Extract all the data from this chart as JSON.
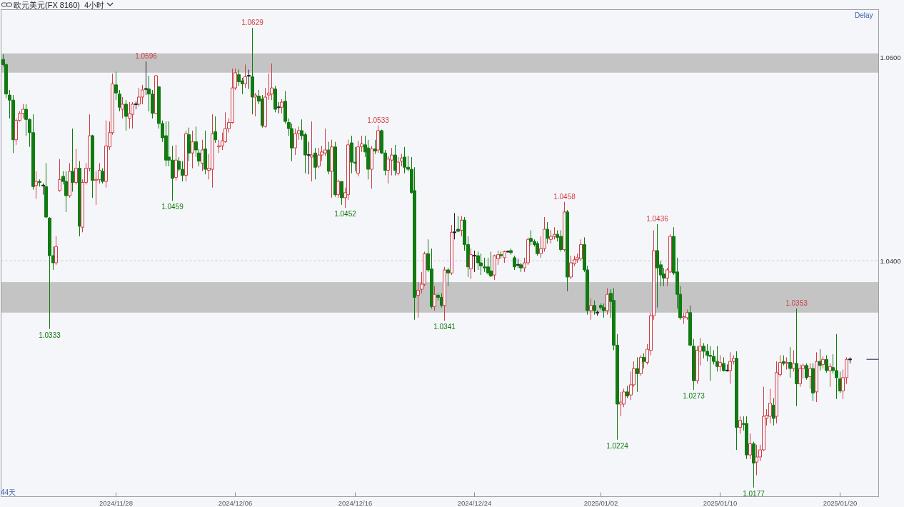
{
  "chart_data": {
    "type": "candlestick",
    "title": "欧元美元(FX 8160)  4小时",
    "categories": [
      null,
      null,
      null,
      null,
      null,
      null,
      null,
      null,
      null,
      null,
      null,
      null,
      null,
      null,
      null,
      null,
      null,
      null,
      null,
      null,
      null,
      null,
      null,
      null,
      null,
      null,
      null,
      null,
      null,
      null,
      null,
      null,
      null,
      null,
      "2024/11/28",
      null,
      null,
      null,
      null,
      null,
      null,
      null,
      null,
      null,
      null,
      null,
      null,
      null,
      null,
      null,
      null,
      null,
      null,
      null,
      null,
      null,
      null,
      null,
      null,
      null,
      null,
      null,
      null,
      null,
      null,
      null,
      null,
      null,
      null,
      null,
      "2024/12/06",
      null,
      null,
      null,
      null,
      null,
      null,
      null,
      null,
      null,
      null,
      null,
      null,
      null,
      null,
      null,
      null,
      null,
      null,
      null,
      null,
      null,
      null,
      null,
      null,
      null,
      null,
      null,
      null,
      null,
      null,
      null,
      null,
      null,
      null,
      null,
      "2024/12/16",
      null,
      null,
      null,
      null,
      null,
      null,
      null,
      null,
      null,
      null,
      null,
      null,
      null,
      null,
      null,
      null,
      null,
      null,
      null,
      null,
      null,
      null,
      null,
      null,
      null,
      null,
      null,
      null,
      null,
      null,
      null,
      null,
      null,
      null,
      null,
      "2024/12/24",
      null,
      null,
      null,
      null,
      null,
      null,
      null,
      null,
      null,
      null,
      null,
      null,
      null,
      null,
      null,
      null,
      null,
      null,
      null,
      null,
      null,
      null,
      null,
      null,
      null,
      null,
      null,
      null,
      null,
      null,
      null,
      null,
      null,
      null,
      null,
      null,
      null,
      "2025/01/02",
      null,
      null,
      null,
      null,
      null,
      null,
      null,
      null,
      null,
      null,
      null,
      null,
      null,
      null,
      null,
      null,
      null,
      null,
      null,
      null,
      null,
      null,
      null,
      null,
      null,
      null,
      null,
      null,
      null,
      null,
      null,
      null,
      null,
      null,
      null,
      "2025/01/10",
      null,
      null,
      null,
      null,
      null,
      null,
      null,
      null,
      null,
      null,
      null,
      null,
      null,
      null,
      null,
      null,
      null,
      null,
      null,
      null,
      null,
      null,
      null,
      null,
      null,
      null,
      null,
      null,
      null,
      null,
      null,
      null,
      null,
      null,
      null,
      "2025/01/20",
      null,
      null,
      null
    ],
    "ohlc": [
      [
        1.0598,
        1.0603,
        1.0591,
        1.0593
      ],
      [
        1.0593,
        1.0594,
        1.056,
        1.0564
      ],
      [
        1.0563,
        1.0568,
        1.054,
        1.0558
      ],
      [
        1.0558,
        1.0563,
        1.0506,
        1.0519
      ],
      [
        1.0519,
        1.054,
        1.0514,
        1.0538
      ],
      [
        1.0538,
        1.0547,
        1.0537,
        1.0545
      ],
      [
        1.0545,
        1.0554,
        1.054,
        1.0549
      ],
      [
        1.0549,
        1.0554,
        1.0523,
        1.0539
      ],
      [
        1.0539,
        1.054,
        1.0512,
        1.0526
      ],
      [
        1.0526,
        1.0544,
        1.047,
        1.0473
      ],
      [
        1.0474,
        1.0488,
        1.0461,
        1.0478
      ],
      [
        1.0478,
        1.048,
        1.0473,
        1.0477
      ],
      [
        1.0474,
        1.0476,
        1.0465,
        1.0474
      ],
      [
        1.0473,
        1.0496,
        1.0442,
        1.0443
      ],
      [
        1.0442,
        1.0443,
        1.0333,
        1.0405
      ],
      [
        1.0405,
        1.0414,
        1.0391,
        1.0398
      ],
      [
        1.0398,
        1.0424,
        1.0396,
        1.0414
      ],
      [
        1.0469,
        1.05,
        1.0468,
        1.048
      ],
      [
        1.0483,
        1.0488,
        1.0475,
        1.0478
      ],
      [
        1.0478,
        1.0488,
        1.0448,
        1.0464
      ],
      [
        1.0464,
        1.0496,
        1.0462,
        1.0488
      ],
      [
        1.0488,
        1.053,
        1.0468,
        1.0477
      ],
      [
        1.0477,
        1.051,
        1.0475,
        1.0491
      ],
      [
        1.0491,
        1.0498,
        1.0424,
        1.0434
      ],
      [
        1.0433,
        1.048,
        1.0428,
        1.0477
      ],
      [
        1.0477,
        1.0496,
        1.0475,
        1.0491
      ],
      [
        1.0491,
        1.0544,
        1.0488,
        1.0523
      ],
      [
        1.0523,
        1.0524,
        1.0462,
        1.0479
      ],
      [
        1.0479,
        1.0488,
        1.0455,
        1.048
      ],
      [
        1.048,
        1.0496,
        1.0476,
        1.0489
      ],
      [
        1.0488,
        1.0491,
        1.0476,
        1.0478
      ],
      [
        1.0478,
        1.0538,
        1.0472,
        1.0513
      ],
      [
        1.0512,
        1.0537,
        1.0509,
        1.0526
      ],
      [
        1.0526,
        1.0584,
        1.0524,
        1.0574
      ],
      [
        1.0573,
        1.0586,
        1.0558,
        1.0565
      ],
      [
        1.0564,
        1.0568,
        1.0547,
        1.0551
      ],
      [
        1.0549,
        1.0561,
        1.054,
        1.0554
      ],
      [
        1.0554,
        1.0558,
        1.0528,
        1.0542
      ],
      [
        1.054,
        1.0556,
        1.053,
        1.0545
      ],
      [
        1.0544,
        1.0556,
        1.053,
        1.0554
      ],
      [
        1.0554,
        1.0557,
        1.0549,
        1.0554
      ],
      [
        1.0554,
        1.057,
        1.0552,
        1.0561
      ],
      [
        1.0561,
        1.0573,
        1.0554,
        1.0568
      ],
      [
        1.0569,
        1.0596,
        1.0563,
        1.0569
      ],
      [
        1.0569,
        1.0582,
        1.0547,
        1.0564
      ],
      [
        1.0564,
        1.0568,
        1.054,
        1.0545
      ],
      [
        1.0545,
        1.0583,
        1.0544,
        1.0582
      ],
      [
        1.0571,
        1.0572,
        1.053,
        1.0535
      ],
      [
        1.0535,
        1.0538,
        1.0517,
        1.0521
      ],
      [
        1.0523,
        1.0537,
        1.0493,
        1.0499
      ],
      [
        1.0502,
        1.0537,
        1.0493,
        1.0499
      ],
      [
        1.0499,
        1.0513,
        1.0459,
        1.0481
      ],
      [
        1.0482,
        1.0514,
        1.0479,
        1.0499
      ],
      [
        1.0498,
        1.0502,
        1.0488,
        1.049
      ],
      [
        1.049,
        1.0498,
        1.0478,
        1.0484
      ],
      [
        1.0484,
        1.0528,
        1.0478,
        1.0525
      ],
      [
        1.0524,
        1.0531,
        1.0498,
        1.0506
      ],
      [
        1.0506,
        1.0528,
        1.0491,
        1.0517
      ],
      [
        1.0517,
        1.0532,
        1.0502,
        1.0509
      ],
      [
        1.0506,
        1.051,
        1.0493,
        1.0498
      ],
      [
        1.0496,
        1.0519,
        1.0488,
        1.0509
      ],
      [
        1.051,
        1.0528,
        1.0485,
        1.049
      ],
      [
        1.0489,
        1.0505,
        1.048,
        1.0491
      ],
      [
        1.049,
        1.0544,
        1.0472,
        1.0525
      ],
      [
        1.0527,
        1.0542,
        1.0516,
        1.0519
      ],
      [
        1.0512,
        1.0519,
        1.0506,
        1.0513
      ],
      [
        1.0513,
        1.0526,
        1.0509,
        1.0518
      ],
      [
        1.0517,
        1.0546,
        1.0516,
        1.053
      ],
      [
        1.053,
        1.054,
        1.0526,
        1.0536
      ],
      [
        1.0536,
        1.0589,
        1.0535,
        1.057
      ],
      [
        1.057,
        1.0589,
        1.0568,
        1.0585
      ],
      [
        1.0583,
        1.0588,
        1.0572,
        1.0576
      ],
      [
        1.0577,
        1.058,
        1.0564,
        1.0574
      ],
      [
        1.0574,
        1.0593,
        1.057,
        1.0581
      ],
      [
        1.0582,
        1.0588,
        1.0569,
        1.0582
      ],
      [
        1.0581,
        1.0629,
        1.0544,
        1.0561
      ],
      [
        1.0561,
        1.0565,
        1.0542,
        1.0563
      ],
      [
        1.0562,
        1.0568,
        1.0554,
        1.0557
      ],
      [
        1.0559,
        1.0563,
        1.0531,
        1.0533
      ],
      [
        1.0532,
        1.057,
        1.0531,
        1.0561
      ],
      [
        1.0563,
        1.0584,
        1.0558,
        1.0565
      ],
      [
        1.0564,
        1.0594,
        1.0558,
        1.057
      ],
      [
        1.0569,
        1.0572,
        1.0546,
        1.0549
      ],
      [
        1.0551,
        1.0556,
        1.0545,
        1.0551
      ],
      [
        1.0551,
        1.0559,
        1.0545,
        1.0556
      ],
      [
        1.0557,
        1.0567,
        1.0535,
        1.0537
      ],
      [
        1.0536,
        1.054,
        1.0523,
        1.053
      ],
      [
        1.053,
        1.0535,
        1.0498,
        1.0511
      ],
      [
        1.0511,
        1.053,
        1.0504,
        1.0525
      ],
      [
        1.0525,
        1.0532,
        1.0519,
        1.0528
      ],
      [
        1.0528,
        1.0539,
        1.0519,
        1.0523
      ],
      [
        1.0524,
        1.0526,
        1.0486,
        1.0504
      ],
      [
        1.0504,
        1.0517,
        1.0485,
        1.0504
      ],
      [
        1.0502,
        1.0537,
        1.0478,
        1.0504
      ],
      [
        1.0506,
        1.0511,
        1.048,
        1.0492
      ],
      [
        1.0493,
        1.0511,
        1.0491,
        1.0504
      ],
      [
        1.0504,
        1.0513,
        1.0498,
        1.0507
      ],
      [
        1.0506,
        1.053,
        1.0503,
        1.0509
      ],
      [
        1.0509,
        1.0517,
        1.0485,
        1.0488
      ],
      [
        1.0488,
        1.0519,
        1.0462,
        1.0512
      ],
      [
        1.0512,
        1.0517,
        1.0463,
        1.0465
      ],
      [
        1.0465,
        1.048,
        1.0462,
        1.0478
      ],
      [
        1.0478,
        1.0478,
        1.0455,
        1.0462
      ],
      [
        1.0462,
        1.0472,
        1.0452,
        1.0467
      ],
      [
        1.0465,
        1.0519,
        1.046,
        1.0514
      ],
      [
        1.0516,
        1.0523,
        1.0486,
        1.0497
      ],
      [
        1.0497,
        1.0512,
        1.0488,
        1.0496
      ],
      [
        1.0486,
        1.0518,
        1.0483,
        1.0512
      ],
      [
        1.0512,
        1.0523,
        1.0507,
        1.0515
      ],
      [
        1.0514,
        1.0523,
        1.0502,
        1.0507
      ],
      [
        1.0511,
        1.0519,
        1.048,
        1.049
      ],
      [
        1.049,
        1.0513,
        1.0471,
        1.051
      ],
      [
        1.051,
        1.0519,
        1.0505,
        1.0508
      ],
      [
        1.0509,
        1.0533,
        1.0506,
        1.0528
      ],
      [
        1.0528,
        1.0529,
        1.0505,
        1.0506
      ],
      [
        1.0506,
        1.0509,
        1.0484,
        1.0489
      ],
      [
        1.0489,
        1.0503,
        1.0476,
        1.05
      ],
      [
        1.0499,
        1.0511,
        1.0484,
        1.0504
      ],
      [
        1.0504,
        1.0514,
        1.0484,
        1.0489
      ],
      [
        1.0486,
        1.0502,
        1.0484,
        1.0497
      ],
      [
        1.0498,
        1.0505,
        1.0493,
        1.0501
      ],
      [
        1.0502,
        1.0512,
        1.0486,
        1.0492
      ],
      [
        1.0492,
        1.0503,
        1.0488,
        1.049
      ],
      [
        1.049,
        1.0502,
        1.0466,
        1.0467
      ],
      [
        1.0469,
        1.0492,
        1.0342,
        1.0364
      ],
      [
        1.0366,
        1.0379,
        1.0344,
        1.0371
      ],
      [
        1.0372,
        1.0389,
        1.0368,
        1.0377
      ],
      [
        1.0377,
        1.0409,
        1.0375,
        1.0407
      ],
      [
        1.0407,
        1.0421,
        1.0389,
        1.0391
      ],
      [
        1.0392,
        1.0412,
        1.0353,
        1.0355
      ],
      [
        1.0355,
        1.0375,
        1.0351,
        1.0367
      ],
      [
        1.0366,
        1.0368,
        1.0361,
        1.0364
      ],
      [
        1.0364,
        1.0368,
        1.0354,
        1.0356
      ],
      [
        1.0356,
        1.0394,
        1.0341,
        1.0391
      ],
      [
        1.0391,
        1.0393,
        1.0375,
        1.0388
      ],
      [
        1.0388,
        1.0435,
        1.0386,
        1.0428
      ],
      [
        1.0428,
        1.0447,
        1.0421,
        1.0428
      ],
      [
        1.0431,
        1.0444,
        1.0428,
        1.0429
      ],
      [
        1.043,
        1.0444,
        1.0424,
        1.044
      ],
      [
        1.044,
        1.0443,
        1.041,
        1.0416
      ],
      [
        1.0416,
        1.0424,
        1.0384,
        1.0394
      ],
      [
        1.0392,
        1.0412,
        1.0382,
        1.0406
      ],
      [
        1.0405,
        1.041,
        1.0389,
        1.0405
      ],
      [
        1.0405,
        1.0409,
        1.0391,
        1.0398
      ],
      [
        1.0398,
        1.0407,
        1.0386,
        1.0395
      ],
      [
        1.0394,
        1.0403,
        1.0389,
        1.0393
      ],
      [
        1.0394,
        1.0403,
        1.0386,
        1.0388
      ],
      [
        1.039,
        1.0409,
        1.0384,
        1.0385
      ],
      [
        1.0386,
        1.0406,
        1.0381,
        1.0405
      ],
      [
        1.0402,
        1.041,
        1.0396,
        1.0406
      ],
      [
        1.0406,
        1.0409,
        1.0402,
        1.0405
      ],
      [
        1.0403,
        1.041,
        1.0398,
        1.0409
      ],
      [
        1.0409,
        1.041,
        1.0408,
        1.0409
      ],
      [
        1.041,
        1.0412,
        1.0406,
        1.0408
      ],
      [
        1.0403,
        1.0405,
        1.0391,
        1.0394
      ],
      [
        1.0396,
        1.0402,
        1.0393,
        1.0396
      ],
      [
        1.0396,
        1.0398,
        1.0389,
        1.0393
      ],
      [
        1.0393,
        1.0403,
        1.0389,
        1.0398
      ],
      [
        1.0398,
        1.0423,
        1.0396,
        1.0421
      ],
      [
        1.0422,
        1.043,
        1.0415,
        1.0419
      ],
      [
        1.0419,
        1.0421,
        1.0414,
        1.0416
      ],
      [
        1.0417,
        1.0419,
        1.0405,
        1.0407
      ],
      [
        1.0407,
        1.0424,
        1.0403,
        1.0412
      ],
      [
        1.0412,
        1.0443,
        1.0409,
        1.0431
      ],
      [
        1.0431,
        1.0438,
        1.0417,
        1.0422
      ],
      [
        1.0421,
        1.043,
        1.0417,
        1.0424
      ],
      [
        1.0424,
        1.0433,
        1.0421,
        1.0426
      ],
      [
        1.0426,
        1.043,
        1.0419,
        1.0423
      ],
      [
        1.0424,
        1.043,
        1.0409,
        1.0411
      ],
      [
        1.0411,
        1.0458,
        1.0409,
        1.0448
      ],
      [
        1.0448,
        1.045,
        1.037,
        1.0384
      ],
      [
        1.0384,
        1.0405,
        1.0382,
        1.0398
      ],
      [
        1.0397,
        1.0405,
        1.0395,
        1.0401
      ],
      [
        1.0401,
        1.0407,
        1.0398,
        1.0403
      ],
      [
        1.0402,
        1.0421,
        1.04,
        1.0416
      ],
      [
        1.0416,
        1.0423,
        1.0389,
        1.0391
      ],
      [
        1.0391,
        1.0395,
        1.0347,
        1.0351
      ],
      [
        1.0351,
        1.0363,
        1.0342,
        1.0356
      ],
      [
        1.0356,
        1.0361,
        1.0347,
        1.0351
      ],
      [
        1.0349,
        1.0351,
        1.0346,
        1.0349
      ],
      [
        1.0356,
        1.0358,
        1.0352,
        1.0354
      ],
      [
        1.0354,
        1.0358,
        1.0344,
        1.0351
      ],
      [
        1.0351,
        1.0373,
        1.0347,
        1.0367
      ],
      [
        1.0368,
        1.0372,
        1.0344,
        1.036
      ],
      [
        1.0361,
        1.0373,
        1.0312,
        1.0317
      ],
      [
        1.0317,
        1.0328,
        1.0224,
        1.0259
      ],
      [
        1.0259,
        1.0271,
        1.0247,
        1.0261
      ],
      [
        1.0259,
        1.0274,
        1.0256,
        1.0271
      ],
      [
        1.0271,
        1.0277,
        1.0265,
        1.0267
      ],
      [
        1.0268,
        1.0291,
        1.0263,
        1.0278
      ],
      [
        1.0278,
        1.0301,
        1.0276,
        1.0294
      ],
      [
        1.0294,
        1.0305,
        1.0271,
        1.0289
      ],
      [
        1.0289,
        1.0307,
        1.0287,
        1.0305
      ],
      [
        1.0305,
        1.0309,
        1.0294,
        1.0301
      ],
      [
        1.03,
        1.0318,
        1.0298,
        1.0313
      ],
      [
        1.0312,
        1.0349,
        1.0307,
        1.0346
      ],
      [
        1.0346,
        1.043,
        1.0342,
        1.041
      ],
      [
        1.041,
        1.0436,
        1.0354,
        1.0393
      ],
      [
        1.0396,
        1.04,
        1.0375,
        1.0386
      ],
      [
        1.0387,
        1.0393,
        1.0375,
        1.0383
      ],
      [
        1.0383,
        1.0393,
        1.0375,
        1.0391
      ],
      [
        1.0389,
        1.0426,
        1.0388,
        1.0424
      ],
      [
        1.0424,
        1.0433,
        1.0386,
        1.0388
      ],
      [
        1.0389,
        1.0403,
        1.0353,
        1.0367
      ],
      [
        1.0367,
        1.0375,
        1.0342,
        1.0344
      ],
      [
        1.0344,
        1.0349,
        1.0338,
        1.0345
      ],
      [
        1.0344,
        1.0352,
        1.0342,
        1.0349
      ],
      [
        1.0349,
        1.0356,
        1.0316,
        1.0317
      ],
      [
        1.0316,
        1.0323,
        1.0273,
        1.0282
      ],
      [
        1.0282,
        1.0316,
        1.0279,
        1.0312
      ],
      [
        1.0311,
        1.0324,
        1.0297,
        1.0316
      ],
      [
        1.0316,
        1.0319,
        1.0304,
        1.0311
      ],
      [
        1.0311,
        1.0318,
        1.0301,
        1.0307
      ],
      [
        1.0307,
        1.0316,
        1.0282,
        1.0306
      ],
      [
        1.0306,
        1.0312,
        1.0298,
        1.0301
      ],
      [
        1.0301,
        1.0316,
        1.0291,
        1.0296
      ],
      [
        1.0296,
        1.0307,
        1.0291,
        1.03
      ],
      [
        1.0299,
        1.0305,
        1.0291,
        1.0292
      ],
      [
        1.0292,
        1.0298,
        1.0291,
        1.0292
      ],
      [
        1.0292,
        1.031,
        1.0279,
        1.0301
      ],
      [
        1.0301,
        1.0307,
        1.0298,
        1.0304
      ],
      [
        1.0304,
        1.0311,
        1.0214,
        1.0236
      ],
      [
        1.0236,
        1.0247,
        1.023,
        1.0243
      ],
      [
        1.024,
        1.0247,
        1.0233,
        1.0239
      ],
      [
        1.024,
        1.0247,
        1.0205,
        1.0209
      ],
      [
        1.0209,
        1.023,
        1.0205,
        1.022
      ],
      [
        1.022,
        1.0222,
        1.0177,
        1.0201
      ],
      [
        1.0202,
        1.0219,
        1.0189,
        1.0207
      ],
      [
        1.0207,
        1.0219,
        1.0203,
        1.0214
      ],
      [
        1.0214,
        1.0276,
        1.0213,
        1.0247
      ],
      [
        1.0245,
        1.0254,
        1.0238,
        1.0248
      ],
      [
        1.0247,
        1.0274,
        1.024,
        1.026
      ],
      [
        1.0258,
        1.0265,
        1.0238,
        1.0245
      ],
      [
        1.0247,
        1.0301,
        1.024,
        1.029
      ],
      [
        1.0288,
        1.0307,
        1.0286,
        1.03
      ],
      [
        1.0301,
        1.0307,
        1.0297,
        1.0299
      ],
      [
        1.0299,
        1.0305,
        1.0293,
        1.03
      ],
      [
        1.03,
        1.0315,
        1.0285,
        1.0294
      ],
      [
        1.0294,
        1.0312,
        1.0291,
        1.0299
      ],
      [
        1.0299,
        1.0353,
        1.0257,
        1.0279
      ],
      [
        1.0279,
        1.0298,
        1.0276,
        1.0294
      ],
      [
        1.0294,
        1.0299,
        1.0284,
        1.0297
      ],
      [
        1.0297,
        1.0299,
        1.0283,
        1.0285
      ],
      [
        1.0286,
        1.0299,
        1.0274,
        1.0294
      ],
      [
        1.0294,
        1.0299,
        1.0262,
        1.027
      ],
      [
        1.0271,
        1.031,
        1.0261,
        1.0301
      ],
      [
        1.0301,
        1.0313,
        1.0292,
        1.0297
      ],
      [
        1.0298,
        1.0306,
        1.0294,
        1.0303
      ],
      [
        1.0303,
        1.0307,
        1.029,
        1.0292
      ],
      [
        1.0292,
        1.0299,
        1.0276,
        1.0296
      ],
      [
        1.0295,
        1.0308,
        1.0289,
        1.0292
      ],
      [
        1.0292,
        1.0328,
        1.0264,
        1.0285
      ],
      [
        1.0284,
        1.0291,
        1.027,
        1.0272
      ],
      [
        1.0272,
        1.0293,
        1.0264,
        1.0285
      ],
      [
        1.0285,
        1.0305,
        1.0279,
        1.0303
      ],
      [
        1.0303,
        1.0305,
        1.0299,
        1.0303
      ]
    ],
    "colors": [
      "#117a11",
      "#117a11",
      "#117a11",
      "#117a11",
      "#d23c46",
      "#d23c46",
      "#d23c46",
      "#117a11",
      "#117a11",
      "#117a11",
      "#d23c46",
      "#117a11",
      "#222222",
      "#117a11",
      "#117a11",
      "#117a11",
      "#d23c46",
      "#d23c46",
      "#117a11",
      "#117a11",
      "#d23c46",
      "#117a11",
      "#d23c46",
      "#117a11",
      "#d23c46",
      "#d23c46",
      "#d23c46",
      "#117a11",
      "#d23c46",
      "#d23c46",
      "#117a11",
      "#d23c46",
      "#d23c46",
      "#d23c46",
      "#117a11",
      "#117a11",
      "#d23c46",
      "#117a11",
      "#d23c46",
      "#d23c46",
      "#222222",
      "#d23c46",
      "#d23c46",
      "#222222",
      "#117a11",
      "#117a11",
      "#d23c46",
      "#117a11",
      "#117a11",
      "#117a11",
      "#117a11",
      "#117a11",
      "#d23c46",
      "#117a11",
      "#117a11",
      "#d23c46",
      "#117a11",
      "#d23c46",
      "#117a11",
      "#117a11",
      "#d23c46",
      "#117a11",
      "#d23c46",
      "#d23c46",
      "#117a11",
      "#d23c46",
      "#d23c46",
      "#d23c46",
      "#d23c46",
      "#d23c46",
      "#d23c46",
      "#117a11",
      "#117a11",
      "#d23c46",
      "#222222",
      "#117a11",
      "#d23c46",
      "#117a11",
      "#117a11",
      "#d23c46",
      "#d23c46",
      "#d23c46",
      "#117a11",
      "#222222",
      "#d23c46",
      "#117a11",
      "#117a11",
      "#117a11",
      "#d23c46",
      "#d23c46",
      "#117a11",
      "#117a11",
      "#222222",
      "#d23c46",
      "#117a11",
      "#d23c46",
      "#d23c46",
      "#d23c46",
      "#117a11",
      "#d23c46",
      "#117a11",
      "#d23c46",
      "#117a11",
      "#d23c46",
      "#d23c46",
      "#117a11",
      "#117a11",
      "#d23c46",
      "#d23c46",
      "#117a11",
      "#117a11",
      "#d23c46",
      "#117a11",
      "#d23c46",
      "#117a11",
      "#117a11",
      "#d23c46",
      "#d23c46",
      "#117a11",
      "#d23c46",
      "#d23c46",
      "#117a11",
      "#117a11",
      "#117a11",
      "#117a11",
      "#d23c46",
      "#d23c46",
      "#d23c46",
      "#117a11",
      "#117a11",
      "#d23c46",
      "#117a11",
      "#117a11",
      "#d23c46",
      "#117a11",
      "#d23c46",
      "#222222",
      "#117a11",
      "#d23c46",
      "#117a11",
      "#117a11",
      "#d23c46",
      "#222222",
      "#117a11",
      "#117a11",
      "#117a11",
      "#117a11",
      "#117a11",
      "#d23c46",
      "#d23c46",
      "#117a11",
      "#d23c46",
      "#222222",
      "#117a11",
      "#117a11",
      "#222222",
      "#117a11",
      "#d23c46",
      "#d23c46",
      "#117a11",
      "#117a11",
      "#117a11",
      "#d23c46",
      "#d23c46",
      "#117a11",
      "#d23c46",
      "#d23c46",
      "#117a11",
      "#117a11",
      "#d23c46",
      "#117a11",
      "#d23c46",
      "#d23c46",
      "#d23c46",
      "#d23c46",
      "#117a11",
      "#117a11",
      "#d23c46",
      "#117a11",
      "#222222",
      "#117a11",
      "#117a11",
      "#d23c46",
      "#117a11",
      "#117a11",
      "#117a11",
      "#d23c46",
      "#d23c46",
      "#117a11",
      "#d23c46",
      "#d23c46",
      "#117a11",
      "#d23c46",
      "#117a11",
      "#d23c46",
      "#d23c46",
      "#d23c46",
      "#117a11",
      "#117a11",
      "#117a11",
      "#d23c46",
      "#d23c46",
      "#117a11",
      "#117a11",
      "#117a11",
      "#d23c46",
      "#d23c46",
      "#117a11",
      "#117a11",
      "#d23c46",
      "#d23c46",
      "#117a11",
      "#117a11",
      "#117a11",
      "#117a11",
      "#117a11",
      "#d23c46",
      "#117a11",
      "#222222",
      "#d23c46",
      "#d23c46",
      "#117a11",
      "#d23c46",
      "#117a11",
      "#117a11",
      "#d23c46",
      "#117a11",
      "#d23c46",
      "#d23c46",
      "#d23c46",
      "#d23c46",
      "#d23c46",
      "#117a11",
      "#d23c46",
      "#d23c46",
      "#117a11",
      "#d23c46",
      "#117a11",
      "#d23c46",
      "#117a11",
      "#d23c46",
      "#d23c46",
      "#117a11",
      "#d23c46",
      "#117a11",
      "#d23c46",
      "#117a11",
      "#d23c46",
      "#117a11",
      "#d23c46",
      "#117a11",
      "#117a11",
      "#117a11",
      "#d23c46",
      "#d23c46",
      "#222222"
    ],
    "ylim": [
      1.0168,
      1.0647
    ],
    "yticks": [
      {
        "value": 1.04,
        "label": "1.0400"
      },
      {
        "value": 1.06,
        "label": "1.0600"
      },
      {
        "value": 1.0303,
        "label": null
      }
    ],
    "grid": "y",
    "bands": [
      {
        "axis": "y",
        "from": 1.0585,
        "to": 1.0604,
        "color": "#c4c4c4"
      },
      {
        "axis": "y",
        "from": 1.0349,
        "to": 1.0379,
        "color": "#c4c4c4"
      }
    ],
    "annotations": [
      "Delay",
      "44天",
      {
        "text": "1.0629",
        "y": 1.0629
      },
      {
        "text": "1.0596",
        "y": 1.0596
      },
      {
        "text": "1.0533",
        "y": 1.0533
      },
      {
        "text": "1.0458",
        "y": 1.0458
      },
      {
        "text": "1.0436",
        "y": 1.0436
      },
      {
        "text": "1.0353",
        "y": 1.0353
      },
      {
        "text": "1.0333",
        "y": 1.0333
      },
      {
        "text": "1.0459",
        "y": 1.0459
      },
      {
        "text": "1.0452",
        "y": 1.0452
      },
      {
        "text": "1.0341",
        "y": 1.0341
      },
      {
        "text": "1.0224",
        "y": 1.0224
      },
      {
        "text": "1.0273",
        "y": 1.0273
      },
      {
        "text": "1.0177",
        "y": 1.0177
      }
    ]
  }
}
